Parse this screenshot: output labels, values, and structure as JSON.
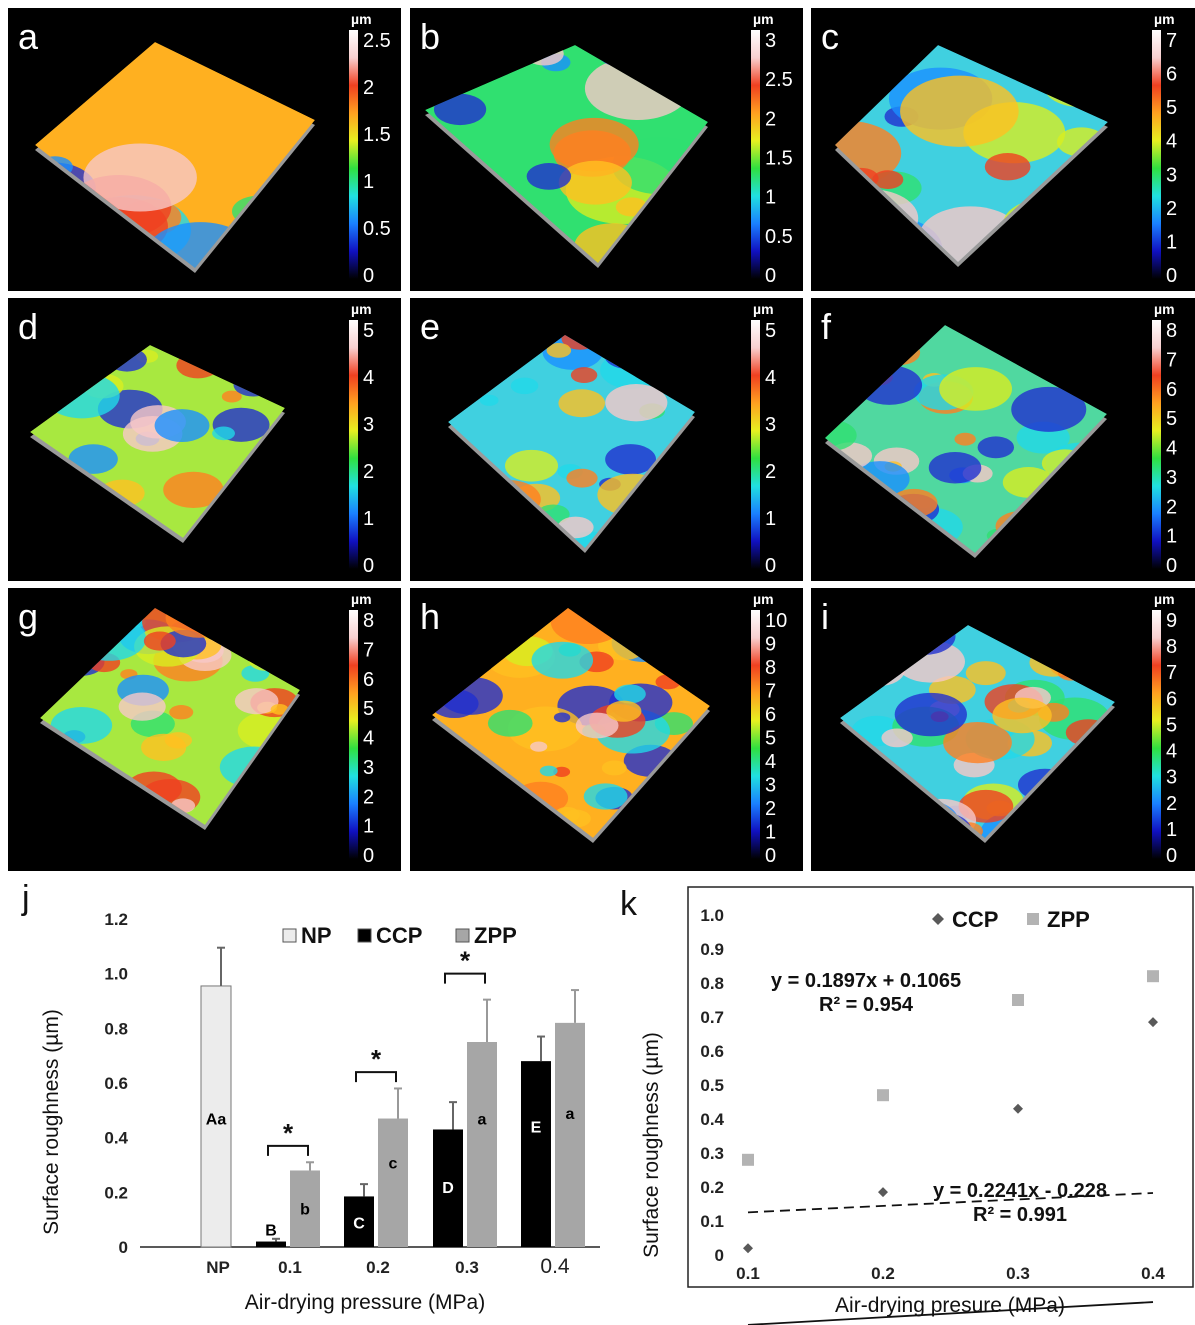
{
  "surface_maps": [
    {
      "letter": "a",
      "unit": "µm",
      "scale": [
        "2.5",
        "2",
        "1.5",
        "1",
        "0.5",
        "0"
      ]
    },
    {
      "letter": "b",
      "unit": "µm",
      "scale": [
        "3",
        "2.5",
        "2",
        "1.5",
        "1",
        "0.5",
        "0"
      ]
    },
    {
      "letter": "c",
      "unit": "µm",
      "scale": [
        "7",
        "6",
        "5",
        "4",
        "3",
        "2",
        "1",
        "0"
      ]
    },
    {
      "letter": "d",
      "unit": "µm",
      "scale": [
        "5",
        "4",
        "3",
        "2",
        "1",
        "0"
      ]
    },
    {
      "letter": "e",
      "unit": "µm",
      "scale": [
        "5",
        "4",
        "3",
        "2",
        "1",
        "0"
      ]
    },
    {
      "letter": "f",
      "unit": "µm",
      "scale": [
        "8",
        "7",
        "6",
        "5",
        "4",
        "3",
        "2",
        "1",
        "0"
      ]
    },
    {
      "letter": "g",
      "unit": "µm",
      "scale": [
        "8",
        "7",
        "6",
        "5",
        "4",
        "3",
        "2",
        "1",
        "0"
      ]
    },
    {
      "letter": "h",
      "unit": "µm",
      "scale": [
        "10",
        "9",
        "8",
        "7",
        "6",
        "5",
        "4",
        "3",
        "2",
        "1",
        "0"
      ]
    },
    {
      "letter": "i",
      "unit": "µm",
      "scale": [
        "9",
        "8",
        "7",
        "6",
        "5",
        "4",
        "3",
        "2",
        "1",
        "0"
      ]
    }
  ],
  "chart_data": [
    {
      "panel": "j",
      "type": "bar",
      "xlabel": "Air-drying pressure (MPa)",
      "ylabel": "Surface roughness (µm)",
      "ylim": [
        0,
        1.2
      ],
      "yticks": [
        "0",
        "0.2",
        "0.4",
        "0.6",
        "0.8",
        "1.0",
        "1.2"
      ],
      "categories": [
        "NP",
        "0.1",
        "0.2",
        "0.3",
        "0.4"
      ],
      "series": [
        {
          "name": "NP",
          "color": "#ececec",
          "values": [
            0.955,
            null,
            null,
            null,
            null
          ],
          "errors": [
            0.14,
            null,
            null,
            null,
            null
          ],
          "labels": [
            "Aa",
            null,
            null,
            null,
            null
          ]
        },
        {
          "name": "CCP",
          "color": "#000000",
          "values": [
            null,
            0.02,
            0.185,
            0.43,
            0.68
          ],
          "errors": [
            null,
            0.01,
            0.045,
            0.1,
            0.09
          ],
          "labels": [
            null,
            "B",
            "C",
            "D",
            "E"
          ]
        },
        {
          "name": "ZPP",
          "color": "#a6a6a6",
          "values": [
            null,
            0.28,
            0.47,
            0.75,
            0.82
          ],
          "errors": [
            null,
            0.03,
            0.11,
            0.155,
            0.12
          ],
          "labels": [
            null,
            "b",
            "c",
            "a",
            "a"
          ]
        }
      ],
      "significance": [
        {
          "category": "0.1",
          "mark": "*"
        },
        {
          "category": "0.2",
          "mark": "*"
        },
        {
          "category": "0.3",
          "mark": "*"
        }
      ],
      "legend": "top-right"
    },
    {
      "panel": "k",
      "type": "scatter",
      "xlabel": "Air-drying presure (MPa)",
      "ylabel": "Surface roughness (µm)",
      "xlim": [
        0.1,
        0.4
      ],
      "ylim": [
        0,
        1.0
      ],
      "xticks": [
        "0.1",
        "0.2",
        "0.3",
        "0.4"
      ],
      "yticks": [
        "0",
        "0.1",
        "0.2",
        "0.3",
        "0.4",
        "0.5",
        "0.6",
        "0.7",
        "0.8",
        "0.9",
        "1.0"
      ],
      "series": [
        {
          "name": "CCP",
          "marker": "diamond",
          "color": "#595959",
          "x": [
            0.1,
            0.2,
            0.3,
            0.4
          ],
          "y": [
            0.02,
            0.185,
            0.43,
            0.685
          ],
          "trend": {
            "slope": 0.2241,
            "intercept": -0.228,
            "style": "solid",
            "equation": "y = 0.2241x - 0.228",
            "r2": "R² = 0.991"
          }
        },
        {
          "name": "ZPP",
          "marker": "square",
          "color": "#b3b3b3",
          "x": [
            0.1,
            0.2,
            0.3,
            0.4
          ],
          "y": [
            0.28,
            0.47,
            0.75,
            0.82
          ],
          "trend": {
            "slope": 0.1897,
            "intercept": 0.1065,
            "style": "dashed",
            "equation": "y = 0.1897x + 0.1065",
            "r2": "R² = 0.954"
          }
        }
      ],
      "legend": "top-right"
    }
  ]
}
